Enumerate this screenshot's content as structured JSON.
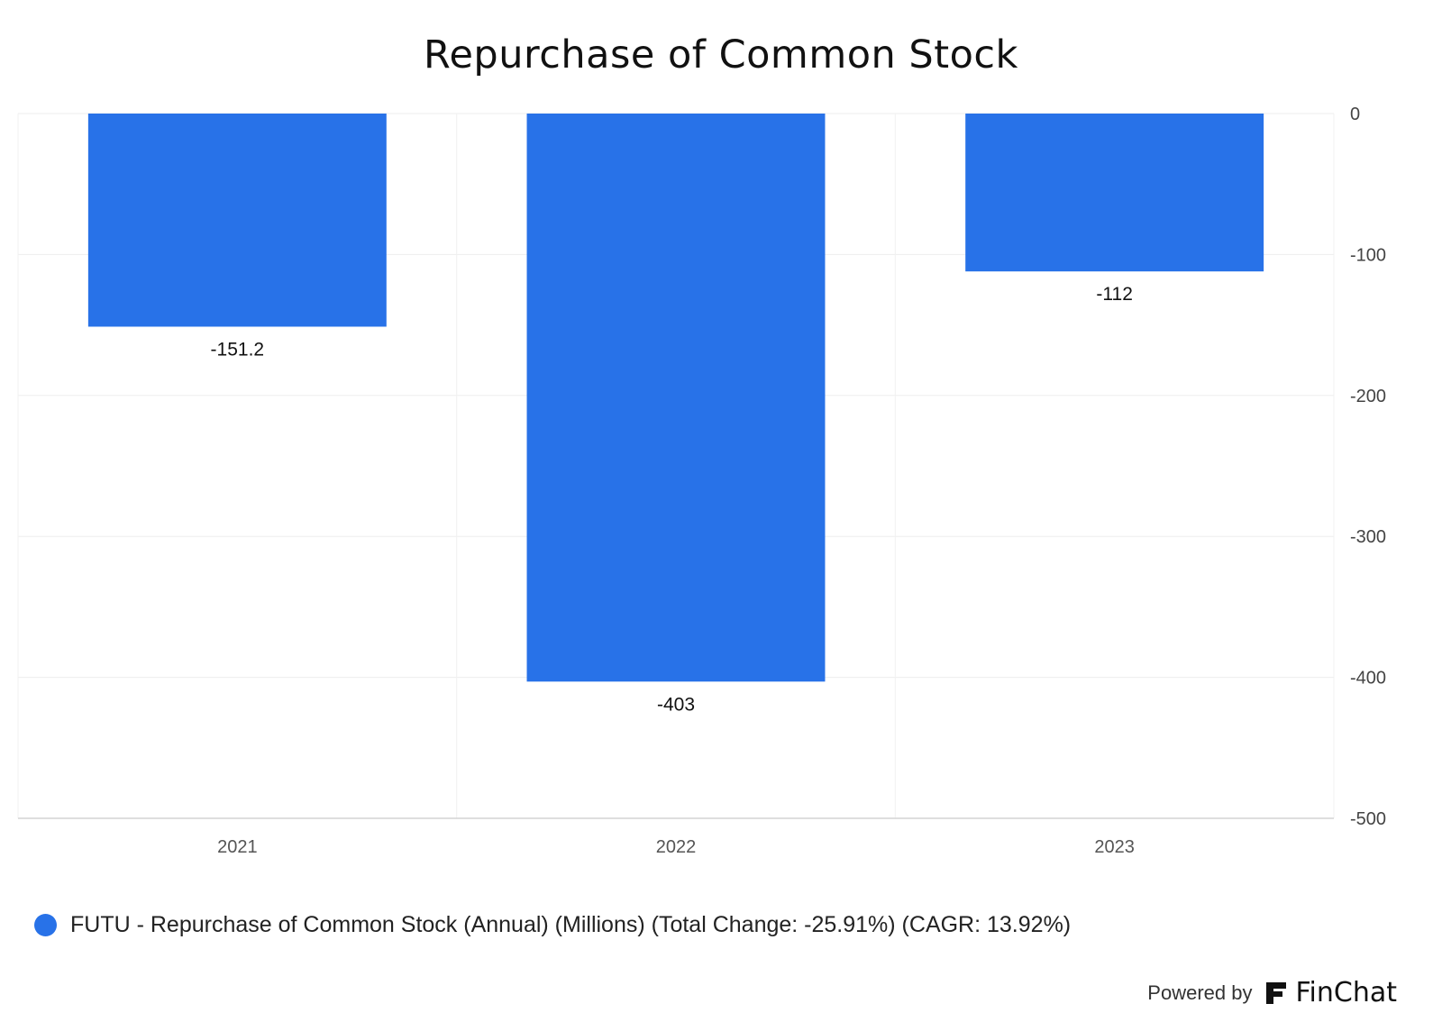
{
  "chart_data": {
    "type": "bar",
    "title": "Repurchase of Common Stock",
    "categories": [
      "2021",
      "2022",
      "2023"
    ],
    "series": [
      {
        "name": "FUTU - Repurchase of Common Stock (Annual) (Millions) (Total Change: -25.91%) (CAGR: 13.92%)",
        "values": [
          -151.2,
          -403,
          -112
        ],
        "data_labels": [
          "-151.2",
          "-403",
          "-112"
        ]
      }
    ],
    "ylim": [
      -500,
      0
    ],
    "y_ticks": [
      0,
      -100,
      -200,
      -300,
      -400,
      -500
    ],
    "y_tick_labels": [
      "0",
      "-100",
      "-200",
      "-300",
      "-400",
      "-500"
    ],
    "y_axis_side": "right",
    "grid": true,
    "legend_position": "bottom-left",
    "bar_color": "#2872e8"
  },
  "footer": {
    "powered_by": "Powered by",
    "brand": "FinChat"
  }
}
